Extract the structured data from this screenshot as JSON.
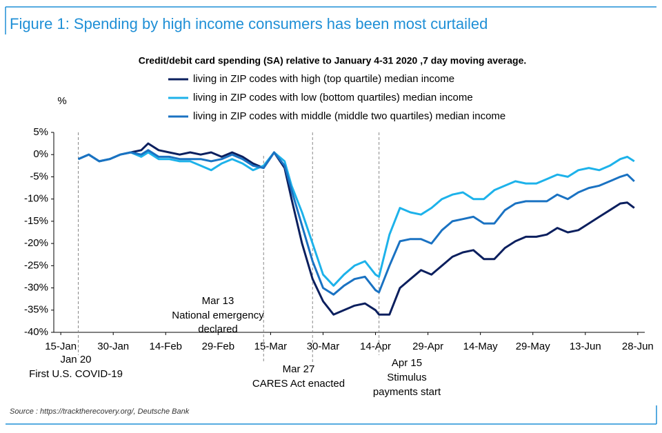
{
  "header": {
    "title": "Figure 1: Spending by high income consumers has been most curtailed"
  },
  "chart_data": {
    "type": "line",
    "title": "Credit/debit card spending (SA) relative to January 4-31 2020 ,7 day moving average.",
    "y_label": "%",
    "x": [
      "20-Jan",
      "23-Jan",
      "26-Jan",
      "29-Jan",
      "1-Feb",
      "4-Feb",
      "7-Feb",
      "9-Feb",
      "12-Feb",
      "15-Feb",
      "18-Feb",
      "21-Feb",
      "24-Feb",
      "27-Feb",
      "1-Mar",
      "4-Mar",
      "7-Mar",
      "10-Mar",
      "13-Mar",
      "16-Mar",
      "19-Mar",
      "21-Mar",
      "24-Mar",
      "27-Mar",
      "30-Mar",
      "2-Apr",
      "5-Apr",
      "8-Apr",
      "11-Apr",
      "14-Apr",
      "15-Apr",
      "18-Apr",
      "21-Apr",
      "24-Apr",
      "27-Apr",
      "30-Apr",
      "3-May",
      "6-May",
      "9-May",
      "12-May",
      "15-May",
      "18-May",
      "21-May",
      "24-May",
      "27-May",
      "30-May",
      "2-Jun",
      "5-Jun",
      "8-Jun",
      "11-Jun",
      "14-Jun",
      "17-Jun",
      "20-Jun",
      "23-Jun",
      "25-Jun",
      "27-Jun"
    ],
    "series": [
      {
        "name": "living in ZIP codes with high (top quartile) median income",
        "color": "#0b1f5e",
        "values": [
          -1,
          0,
          -1.5,
          -1,
          0,
          0.5,
          1,
          2.5,
          1,
          0.5,
          0,
          0.5,
          0,
          0.5,
          -0.5,
          0.5,
          -0.5,
          -2,
          -3,
          0.5,
          -3,
          -10,
          -20,
          -28,
          -33,
          -36,
          -35,
          -34,
          -33.5,
          -35,
          -36,
          -36,
          -30,
          -28,
          -26,
          -27,
          -25,
          -23,
          -22,
          -21.5,
          -23.5,
          -23.5,
          -21,
          -19.5,
          -18.5,
          -18.5,
          -18,
          -16.5,
          -17.5,
          -17,
          -15.5,
          -14,
          -12.5,
          -11,
          -10.8,
          -12
        ]
      },
      {
        "name": "living in ZIP codes with low (bottom quartiles) median income",
        "color": "#1db2ea",
        "values": [
          -1,
          0,
          -1.5,
          -1,
          0,
          0.5,
          -0.5,
          0.5,
          -1,
          -1,
          -1.5,
          -1.5,
          -2.5,
          -3.5,
          -2,
          -1,
          -2,
          -3.5,
          -2.5,
          0.5,
          -1.5,
          -7,
          -13,
          -20,
          -27,
          -29.5,
          -27,
          -25,
          -24,
          -27,
          -27.5,
          -18,
          -12,
          -13,
          -13.5,
          -12,
          -10,
          -9,
          -8.5,
          -10,
          -10,
          -8,
          -7,
          -6,
          -6.5,
          -6.5,
          -5.5,
          -4.5,
          -5,
          -3.5,
          -3,
          -3.5,
          -2.5,
          -1,
          -0.5,
          -1.5
        ]
      },
      {
        "name": "living in ZIP codes with middle (middle two quartiles) median income",
        "color": "#1a72c2",
        "values": [
          -1,
          0,
          -1.5,
          -1,
          0,
          0.5,
          0,
          1,
          -0.5,
          -0.5,
          -1,
          -1,
          -1,
          -1.5,
          -1,
          0,
          -1,
          -2.5,
          -3,
          0.5,
          -2.5,
          -8,
          -16,
          -24,
          -30,
          -31.5,
          -29.5,
          -28,
          -27.5,
          -30.5,
          -31,
          -25,
          -19.5,
          -19,
          -19,
          -20,
          -17,
          -15,
          -14.5,
          -14,
          -15.5,
          -15.5,
          -12.5,
          -11,
          -10.5,
          -10.5,
          -10.5,
          -9,
          -10,
          -8.5,
          -7.5,
          -7,
          -6,
          -5,
          -4.5,
          -6
        ]
      }
    ],
    "xlim": [
      "13-Jan",
      "30-Jun"
    ],
    "xticks": [
      "15-Jan",
      "30-Jan",
      "14-Feb",
      "29-Feb",
      "15-Mar",
      "30-Mar",
      "14-Apr",
      "29-Apr",
      "14-May",
      "29-May",
      "13-Jun",
      "28-Jun"
    ],
    "ylim": [
      -40,
      5
    ],
    "yticks": [
      {
        "value": 5,
        "label": "5%"
      },
      {
        "value": 0,
        "label": "0%"
      },
      {
        "value": -5,
        "label": "-5%"
      },
      {
        "value": -10,
        "label": "-10%"
      },
      {
        "value": -15,
        "label": "-15%"
      },
      {
        "value": -20,
        "label": "-20%"
      },
      {
        "value": -25,
        "label": "-25%"
      },
      {
        "value": -30,
        "label": "-30%"
      },
      {
        "value": -35,
        "label": "-35%"
      },
      {
        "value": -40,
        "label": "-40%"
      }
    ],
    "annotations": [
      {
        "x": "20-Jan",
        "lines": [
          "Jan 20",
          "First U.S. COVID-19"
        ]
      },
      {
        "x": "13-Mar",
        "lines": [
          "Mar 13",
          "National emergency",
          "declared"
        ]
      },
      {
        "x": "27-Mar",
        "lines": [
          "Mar 27",
          "CARES Act enacted"
        ]
      },
      {
        "x": "15-Apr",
        "lines": [
          "Apr 15",
          "Stimulus",
          "payments start"
        ]
      }
    ],
    "grid": false
  },
  "source": "Source : https://tracktherecovery.org/, Deutsche Bank"
}
